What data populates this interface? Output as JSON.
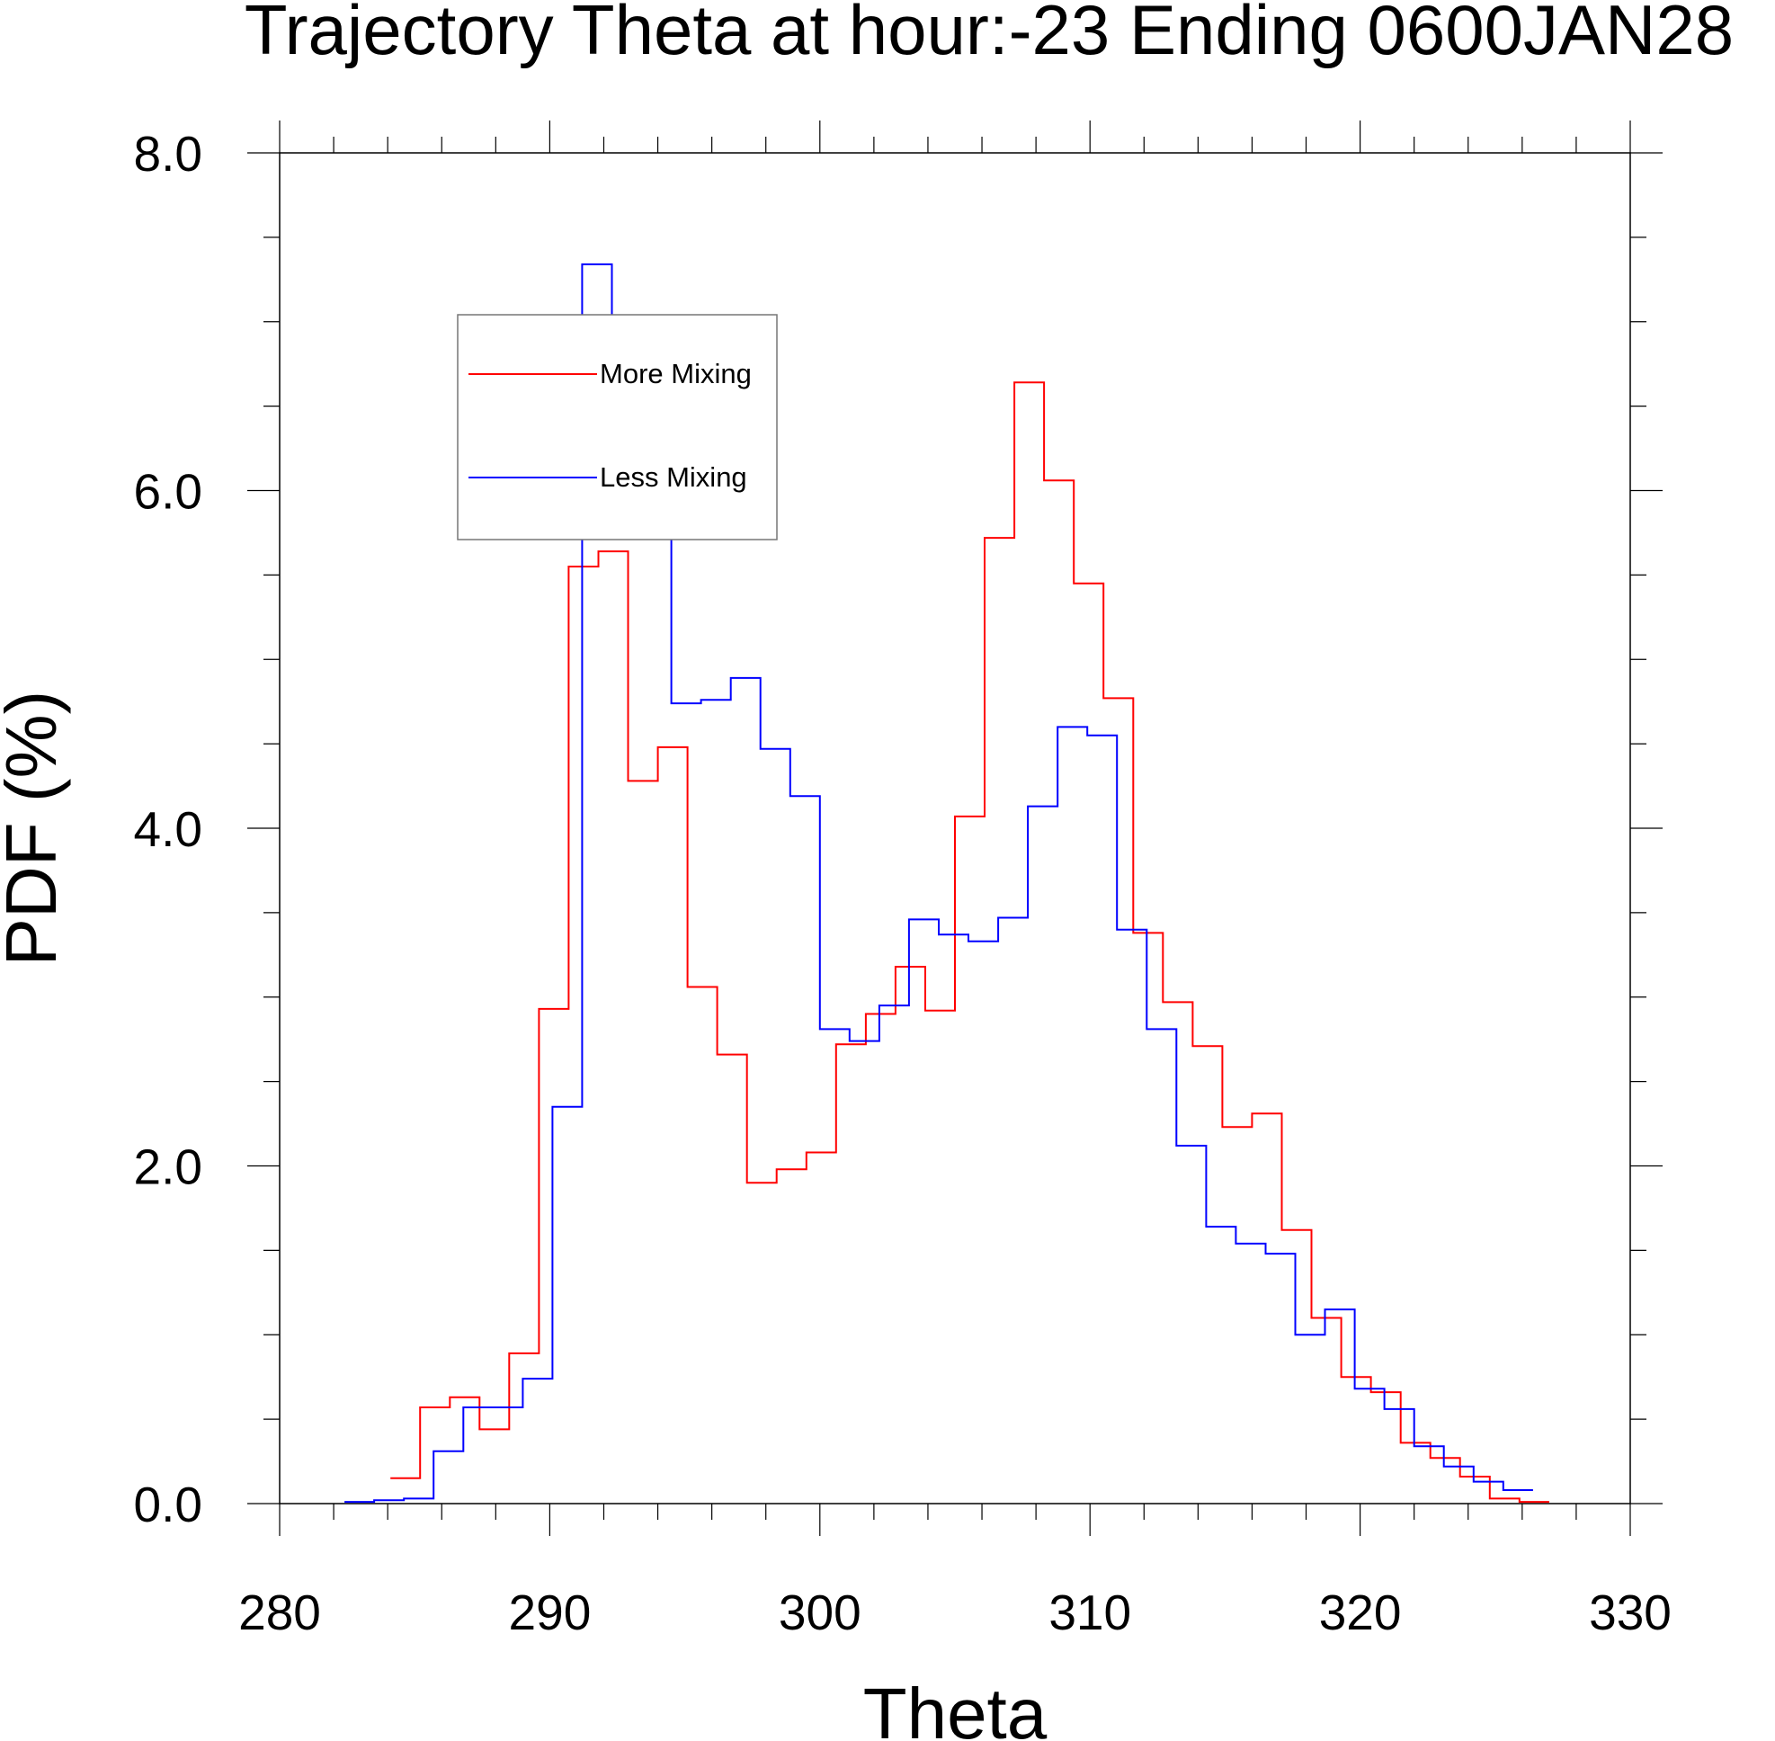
{
  "chart_data": {
    "type": "line",
    "style": "step",
    "title": "Trajectory Theta at hour:-23 Ending 0600JAN28",
    "xlabel": "Theta",
    "ylabel": "PDF (%)",
    "xlim": [
      280,
      330
    ],
    "ylim": [
      0,
      8
    ],
    "xticks": [
      "280",
      "290",
      "300",
      "310",
      "320",
      "330"
    ],
    "yticks": [
      "0.0",
      "2.0",
      "4.0",
      "6.0",
      "8.0"
    ],
    "legend_position": "upper-left",
    "series": [
      {
        "name": "More Mixing",
        "color": "#ff0000",
        "x_start": 284.1,
        "bin_width": 1.1,
        "values": [
          0.15,
          0.57,
          0.63,
          0.44,
          0.89,
          2.93,
          5.55,
          5.64,
          4.28,
          4.48,
          3.06,
          2.66,
          1.9,
          1.98,
          2.08,
          2.72,
          2.9,
          3.18,
          2.92,
          4.07,
          5.72,
          6.64,
          6.06,
          5.45,
          4.77,
          3.38,
          2.97,
          2.71,
          2.23,
          2.31,
          1.62,
          1.1,
          0.75,
          0.66,
          0.36,
          0.27,
          0.16,
          0.03,
          0.01
        ]
      },
      {
        "name": "Less Mixing",
        "color": "#0000ff",
        "x_start": 282.4,
        "bin_width": 1.1,
        "values": [
          0.01,
          0.02,
          0.03,
          0.31,
          0.57,
          0.57,
          0.74,
          2.35,
          7.34,
          6.44,
          6.31,
          4.74,
          4.76,
          4.89,
          4.47,
          4.19,
          2.81,
          2.74,
          2.95,
          3.46,
          3.37,
          3.33,
          3.47,
          4.13,
          4.6,
          4.55,
          3.4,
          2.81,
          2.12,
          1.64,
          1.54,
          1.48,
          1.0,
          1.15,
          0.68,
          0.56,
          0.34,
          0.22,
          0.13,
          0.08
        ]
      }
    ]
  }
}
